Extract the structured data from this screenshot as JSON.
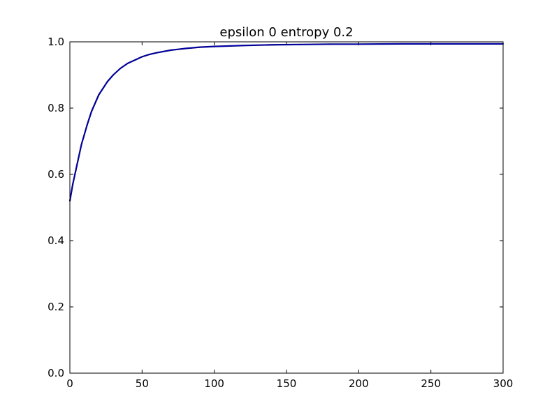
{
  "chart_data": {
    "type": "line",
    "title": "epsilon 0 entropy 0.2",
    "xlabel": "",
    "ylabel": "",
    "xlim": [
      0,
      300
    ],
    "ylim": [
      0.0,
      1.0
    ],
    "xticks": [
      "0",
      "50",
      "100",
      "150",
      "200",
      "250",
      "300"
    ],
    "yticks": [
      "0.0",
      "0.2",
      "0.4",
      "0.6",
      "0.8",
      "1.0"
    ],
    "grid": false,
    "legend": "none",
    "colors": {
      "line": "#000080",
      "line_overlay": "#0000ff",
      "axes": "#000000",
      "background": "#ffffff"
    },
    "series": [
      {
        "x": [
          0,
          2,
          4,
          6,
          8,
          10,
          12,
          15,
          18,
          20,
          23,
          26,
          30,
          35,
          40,
          45,
          50,
          55,
          60,
          70,
          80,
          90,
          100,
          120,
          140,
          160,
          180,
          200,
          230,
          260,
          300
        ],
        "values": [
          0.52,
          0.57,
          0.61,
          0.65,
          0.69,
          0.72,
          0.75,
          0.79,
          0.82,
          0.84,
          0.86,
          0.88,
          0.9,
          0.92,
          0.935,
          0.945,
          0.955,
          0.962,
          0.967,
          0.975,
          0.98,
          0.984,
          0.986,
          0.989,
          0.991,
          0.992,
          0.993,
          0.993,
          0.994,
          0.994,
          0.994
        ]
      }
    ]
  }
}
